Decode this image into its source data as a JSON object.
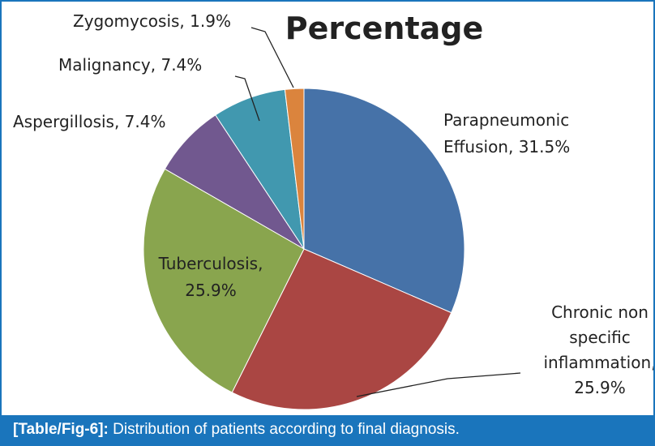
{
  "chart_data": {
    "type": "pie",
    "title": "Percentage",
    "slices": [
      {
        "label_lines": [
          "Parapneumonic",
          "Effusion, 31.5%"
        ],
        "value": 31.5,
        "color": "#4672a8"
      },
      {
        "label_lines": [
          "Chronic non",
          "specific",
          "inflammation,",
          "25.9%"
        ],
        "value": 25.9,
        "color": "#aa4643"
      },
      {
        "label_lines": [
          "Tuberculosis,",
          "25.9%"
        ],
        "value": 25.9,
        "color": "#89a54e"
      },
      {
        "label_lines": [
          "Aspergillosis, 7.4%"
        ],
        "value": 7.4,
        "color": "#71588f"
      },
      {
        "label_lines": [
          "Malignancy, 7.4%"
        ],
        "value": 7.4,
        "color": "#4198af"
      },
      {
        "label_lines": [
          "Zygomycosis, 1.9%"
        ],
        "value": 1.9,
        "color": "#db843d"
      }
    ]
  },
  "caption": {
    "tag": "[Table/Fig-6]:",
    "text": "Distribution of patients according to final diagnosis."
  }
}
